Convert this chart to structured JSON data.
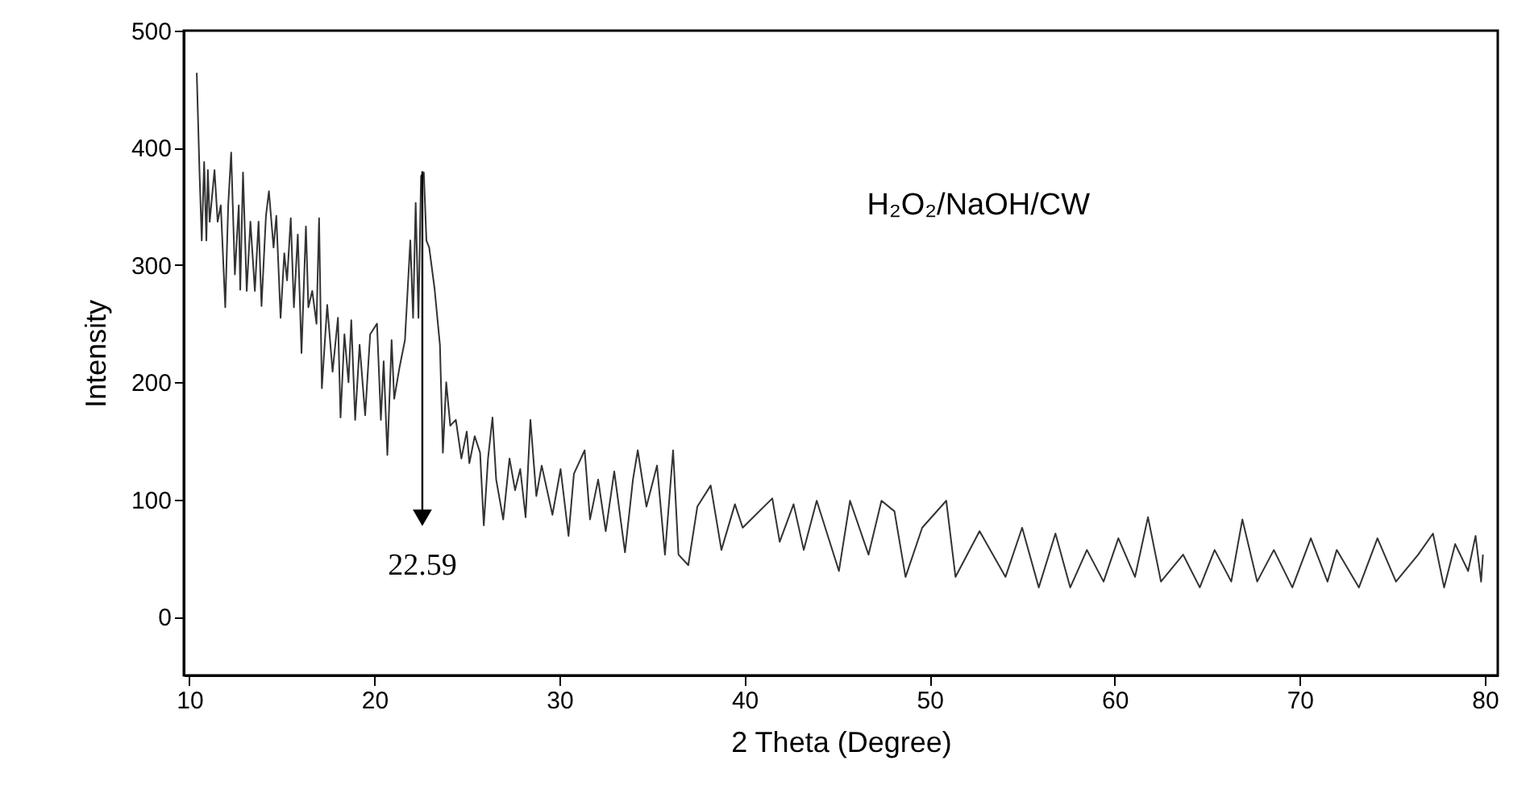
{
  "chart_data": {
    "type": "line",
    "xlabel": "2 Theta (Degree)",
    "ylabel": "Intensity",
    "xlim": [
      9.7,
      80.7
    ],
    "ylim": [
      -50,
      500
    ],
    "xticks": [
      10,
      20,
      30,
      40,
      50,
      60,
      70,
      80
    ],
    "yticks": [
      0,
      100,
      200,
      300,
      400,
      500
    ],
    "grid": false,
    "marker": "none",
    "line_style": "solid",
    "annotations": [
      "H₂O₂/NaOH/CW",
      {
        "text": "22.59",
        "x": 22.59,
        "y": 380
      }
    ],
    "series": [
      {
        "color": "#333333",
        "x": [
          10.4,
          10.55,
          10.67,
          10.8,
          10.92,
          11.0,
          11.1,
          11.36,
          11.53,
          11.7,
          11.94,
          12.1,
          12.26,
          12.46,
          12.67,
          12.75,
          12.9,
          13.1,
          13.3,
          13.54,
          13.74,
          13.9,
          14.14,
          14.3,
          14.55,
          14.7,
          14.93,
          15.13,
          15.28,
          15.48,
          15.65,
          15.86,
          16.06,
          16.3,
          16.43,
          16.64,
          16.87,
          17.01,
          17.16,
          17.45,
          17.74,
          18.03,
          18.17,
          18.38,
          18.6,
          18.75,
          18.96,
          19.2,
          19.5,
          19.77,
          20.14,
          20.35,
          20.5,
          20.7,
          20.93,
          21.07,
          21.36,
          21.65,
          21.94,
          22.09,
          22.23,
          22.38,
          22.52,
          22.67,
          22.81,
          22.96,
          23.25,
          23.54,
          23.7,
          23.88,
          24.1,
          24.4,
          24.7,
          24.99,
          25.13,
          25.42,
          25.71,
          25.91,
          26.14,
          26.38,
          26.58,
          26.96,
          27.3,
          27.6,
          27.88,
          28.17,
          28.43,
          28.75,
          29.04,
          29.62,
          30.06,
          30.49,
          30.78,
          31.36,
          31.65,
          32.09,
          32.5,
          32.96,
          33.54,
          33.97,
          34.23,
          34.7,
          35.27,
          35.7,
          36.14,
          36.43,
          36.96,
          37.45,
          38.17,
          38.75,
          39.48,
          39.9,
          41.5,
          41.9,
          42.65,
          43.2,
          43.9,
          45.1,
          45.7,
          46.7,
          47.4,
          48.1,
          48.7,
          49.6,
          50.9,
          51.4,
          52.7,
          53.6,
          54.1,
          55.0,
          55.9,
          56.8,
          57.6,
          58.5,
          59.4,
          60.2,
          61.1,
          61.8,
          62.5,
          63.7,
          64.6,
          65.4,
          66.3,
          66.9,
          67.7,
          68.6,
          69.6,
          70.6,
          71.5,
          72.0,
          73.2,
          74.2,
          75.2,
          76.4,
          77.2,
          77.8,
          78.4,
          79.1,
          79.5,
          79.8,
          79.9
        ],
        "values": [
          464,
          379,
          321,
          388,
          321,
          381,
          337,
          381,
          337,
          351,
          264,
          351,
          396,
          292,
          351,
          279,
          379,
          278,
          337,
          278,
          337,
          265,
          342,
          363,
          315,
          342,
          255,
          310,
          287,
          340,
          264,
          326,
          225,
          333,
          264,
          278,
          250,
          340,
          195,
          266,
          209,
          255,
          170,
          241,
          200,
          253,
          168,
          232,
          172,
          241,
          250,
          168,
          218,
          138,
          236,
          186,
          213,
          236,
          321,
          255,
          353,
          255,
          376,
          379,
          321,
          315,
          280,
          232,
          140,
          200,
          163,
          168,
          135,
          158,
          131,
          154,
          140,
          78,
          135,
          170,
          117,
          83,
          135,
          108,
          126,
          85,
          168,
          103,
          129,
          87,
          126,
          69,
          122,
          142,
          83,
          117,
          73,
          124,
          55,
          117,
          142,
          94,
          129,
          53,
          142,
          53,
          44,
          94,
          112,
          57,
          96,
          76,
          101,
          64,
          96,
          57,
          99,
          39,
          99,
          53,
          99,
          90,
          34,
          76,
          99,
          34,
          73,
          48,
          34,
          76,
          25,
          71,
          25,
          57,
          30,
          67,
          34,
          85,
          30,
          53,
          25,
          57,
          30,
          83,
          30,
          57,
          25,
          67,
          30,
          57,
          25,
          67,
          30,
          53,
          71,
          25,
          62,
          39,
          69,
          30,
          53
        ]
      }
    ]
  }
}
